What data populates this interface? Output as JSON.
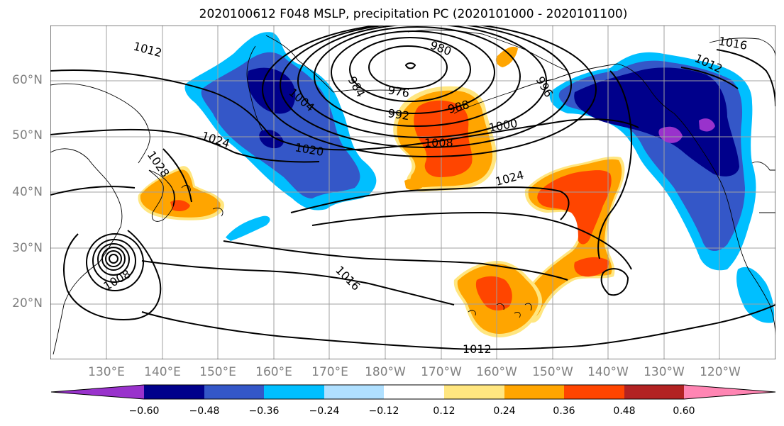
{
  "title": "2020100612 F048 MSLP, precipitation PC (2020101000 - 2020101100)",
  "map": {
    "lon_range": [
      120,
      250
    ],
    "lat_range": [
      10,
      70
    ],
    "lat_labels": [
      "60°N",
      "50°N",
      "40°N",
      "30°N",
      "20°N"
    ],
    "lon_labels": [
      "130°E",
      "140°E",
      "150°E",
      "160°E",
      "170°E",
      "180°W",
      "170°W",
      "160°W",
      "150°W",
      "140°W",
      "130°W",
      "120°W"
    ],
    "isobar_labels": [
      "1012",
      "1012",
      "1012",
      "1016",
      "1016",
      "1020",
      "1024",
      "1024",
      "1028",
      "1008",
      "1008",
      "1004",
      "1000",
      "992",
      "988",
      "984",
      "980",
      "976",
      "996"
    ]
  },
  "colorbar": {
    "tick_labels": [
      "−0.60",
      "−0.48",
      "−0.36",
      "−0.24",
      "−0.12",
      "0.12",
      "0.24",
      "0.36",
      "0.48",
      "0.60"
    ],
    "colors": [
      "#9932cc",
      "#00008b",
      "#3457c8",
      "#00bfff",
      "#b0e0ff",
      "#ffffff",
      "#ffe680",
      "#ffa500",
      "#ff4500",
      "#b22222",
      "#ff85b3"
    ]
  },
  "colors": {
    "purple": "#9932cc",
    "navy": "#00008b",
    "blue": "#3457c8",
    "cyan": "#00bfff",
    "lightblue": "#b0e0ff",
    "yellow": "#ffe680",
    "orange": "#ffa500",
    "red": "#ff4500",
    "darkred": "#b22222",
    "pink": "#ff85b3"
  }
}
